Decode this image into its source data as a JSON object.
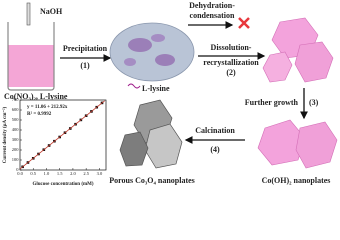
{
  "reagents": {
    "top": "NaOH",
    "bottom": "Co(NO₃)₂, L-lysine"
  },
  "arrows": [
    {
      "lines": [
        "Precipitation"
      ],
      "step": "(1)"
    },
    {
      "lines": [
        "Dehydration-",
        "condensation"
      ]
    },
    {
      "lines": [
        "Dissolution-",
        "recrystallization"
      ],
      "step": "(2)"
    },
    {
      "lines": [
        "Further growth"
      ],
      "step": "(3)"
    },
    {
      "lines": [
        "Calcination"
      ],
      "step": "(4)"
    }
  ],
  "labels": {
    "lysine": "L-lysine",
    "hydroxide": "Co(OH)₂ nanoplates",
    "oxide": "Porous Co₃O₄ nanoplates"
  },
  "chart_data": {
    "type": "line",
    "xlabel": "Glucose concentration (mM)",
    "ylabel": "Current density (μA cm⁻²)",
    "annotations": [
      "y = 11.06 + 212.92x",
      "R² = 0.9992"
    ],
    "series": [
      {
        "mode": "markers",
        "color": "#111",
        "x": [
          0.1,
          0.3,
          0.5,
          0.7,
          0.9,
          1.1,
          1.3,
          1.5,
          1.7,
          1.9,
          2.1,
          2.3,
          2.5,
          2.7,
          2.9,
          3.1
        ],
        "values": [
          32,
          75,
          117,
          160,
          203,
          245,
          288,
          330,
          373,
          415,
          458,
          501,
          543,
          586,
          628,
          671
        ]
      },
      {
        "mode": "line",
        "color": "#c0392b",
        "x": [
          0,
          3.2
        ],
        "values": [
          11,
          692
        ]
      }
    ],
    "xlim": [
      0,
      3.25
    ],
    "ylim": [
      0,
      700
    ],
    "xticks": [
      {
        "value": 0,
        "label": "0.0"
      },
      {
        "value": 0.5,
        "label": "0.5"
      },
      {
        "value": 1,
        "label": "1.0"
      },
      {
        "value": 1.5,
        "label": "1.5"
      },
      {
        "value": 2,
        "label": "2.0"
      },
      {
        "value": 2.5,
        "label": "2.5"
      },
      {
        "value": 3,
        "label": "3.0"
      }
    ],
    "yticks": [
      0,
      100,
      200,
      300,
      400,
      500,
      600,
      700
    ]
  }
}
